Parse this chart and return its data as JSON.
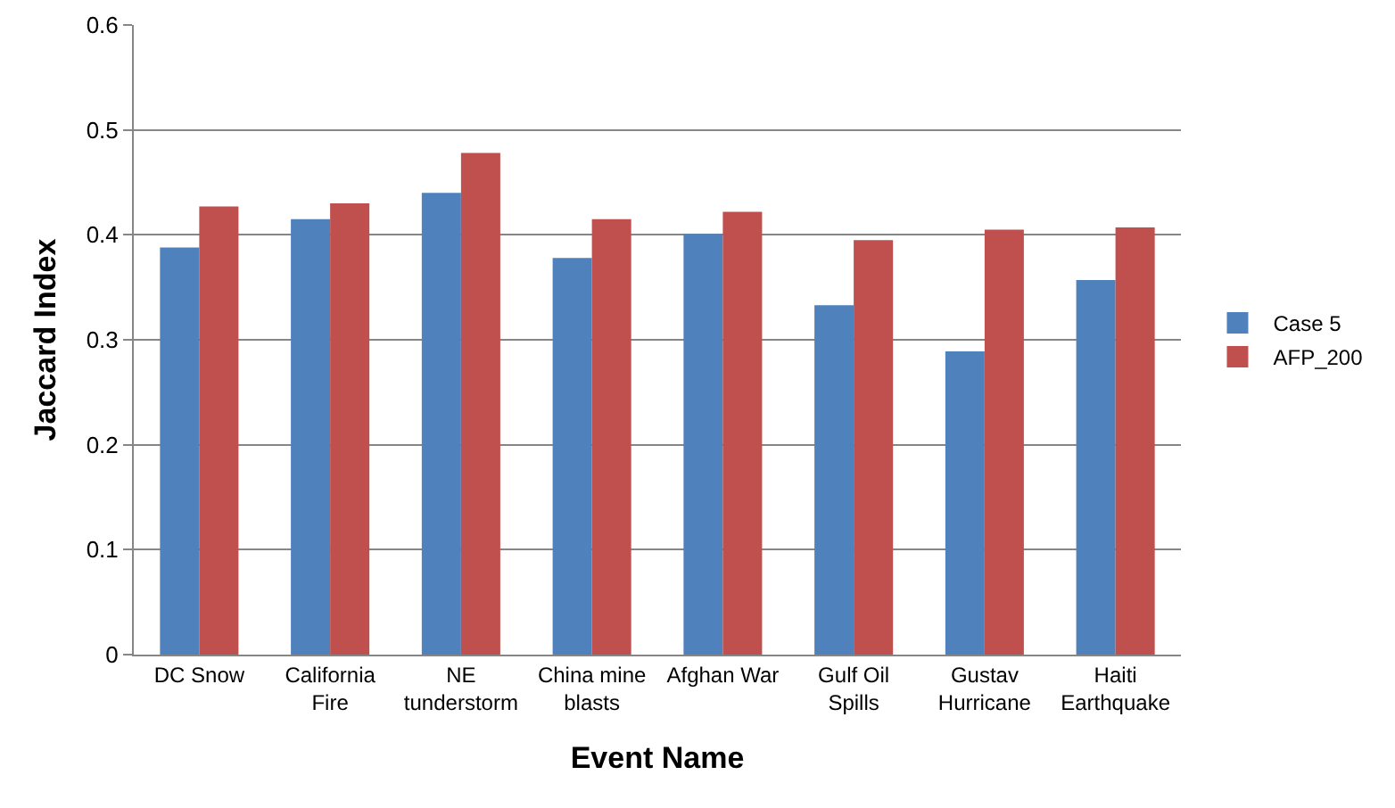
{
  "chart_data": {
    "type": "bar",
    "xlabel": "Event Name",
    "ylabel": "Jaccard Index",
    "categories": [
      "DC Snow",
      "California\nFire",
      "NE\ntunderstorm",
      "China mine\nblasts",
      "Afghan War",
      "Gulf Oil\nSpills",
      "Gustav\nHurricane",
      "Haiti\nEarthquake"
    ],
    "series": [
      {
        "name": "Case 5",
        "color": "#4f81bd",
        "values": [
          0.388,
          0.415,
          0.44,
          0.378,
          0.401,
          0.333,
          0.289,
          0.357
        ]
      },
      {
        "name": "AFP_200",
        "color": "#c0504d",
        "values": [
          0.427,
          0.43,
          0.478,
          0.415,
          0.422,
          0.395,
          0.405,
          0.407
        ]
      }
    ],
    "ylim": [
      0,
      0.6
    ],
    "yticks": [
      0,
      0.1,
      0.2,
      0.3,
      0.4,
      0.5,
      0.6
    ],
    "grid": "y",
    "legend": "right"
  }
}
